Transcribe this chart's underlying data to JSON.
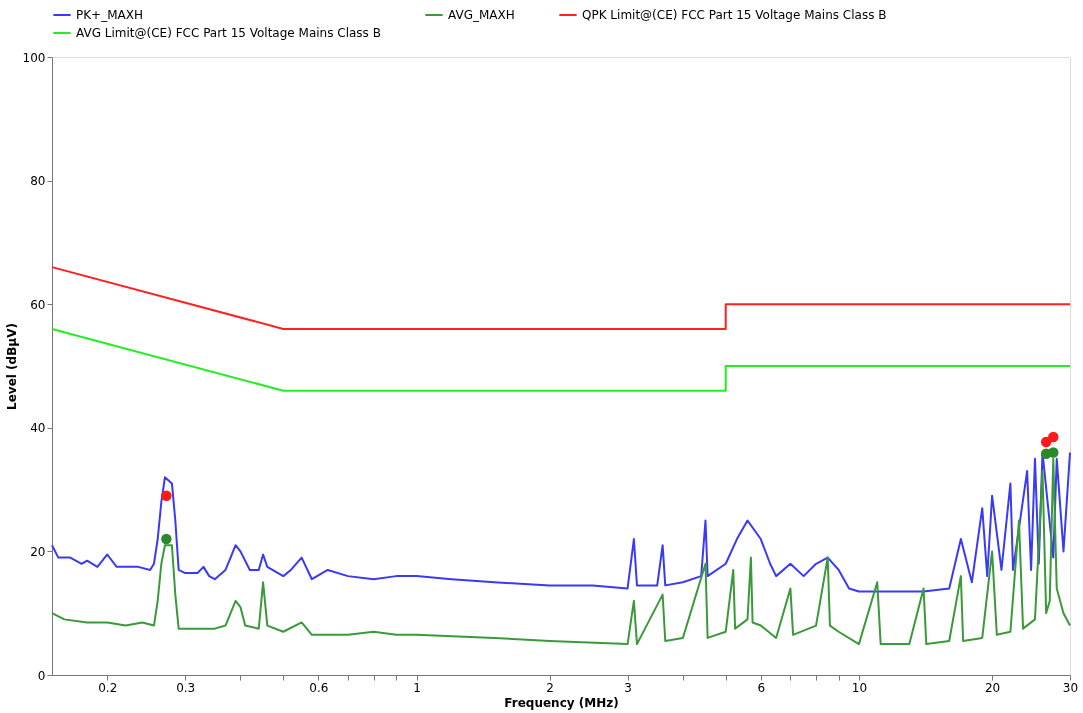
{
  "chart_data": {
    "type": "line",
    "xlabel": "Frequency (MHz)",
    "ylabel": "Level (dBµV)",
    "log": "x",
    "xlim": [
      0.15,
      30
    ],
    "ylim": [
      0,
      100
    ],
    "xticks": [
      0.2,
      0.3,
      {
        "value": 0.4,
        "label": null
      },
      {
        "value": 0.5,
        "label": null
      },
      0.6,
      {
        "value": 0.7,
        "label": null
      },
      {
        "value": 0.8,
        "label": null
      },
      {
        "value": 0.9,
        "label": null
      },
      1,
      2,
      3,
      {
        "value": 4,
        "label": null
      },
      {
        "value": 5,
        "label": null
      },
      6,
      {
        "value": 7,
        "label": null
      },
      {
        "value": 8,
        "label": null
      },
      {
        "value": 9,
        "label": null
      },
      10,
      20,
      30
    ],
    "yticks": [
      0,
      20,
      40,
      60,
      80,
      100
    ],
    "grid": false,
    "legend": "top",
    "series": [
      {
        "name": "PK+_MAXH",
        "color": "#3a3af5",
        "x": [
          0.15,
          0.155,
          0.165,
          0.175,
          0.18,
          0.19,
          0.2,
          0.21,
          0.22,
          0.235,
          0.25,
          0.255,
          0.26,
          0.265,
          0.27,
          0.28,
          0.285,
          0.29,
          0.3,
          0.32,
          0.33,
          0.34,
          0.35,
          0.37,
          0.38,
          0.39,
          0.4,
          0.42,
          0.44,
          0.45,
          0.46,
          0.5,
          0.52,
          0.55,
          0.58,
          0.63,
          0.7,
          0.8,
          0.9,
          1,
          1.2,
          1.5,
          2,
          2.5,
          3,
          3.1,
          3.15,
          3.5,
          3.6,
          3.65,
          4,
          4.4,
          4.5,
          4.55,
          5,
          5.3,
          5.6,
          6,
          6.3,
          6.5,
          7,
          7.5,
          8,
          8.5,
          9,
          9.5,
          10,
          12,
          14,
          16,
          17,
          18,
          19,
          19.5,
          20,
          21,
          22,
          22.3,
          24,
          24.5,
          25,
          25.5,
          26,
          27.5,
          28,
          29,
          30
        ],
        "values": [
          21,
          19,
          19,
          18,
          18.5,
          17.5,
          19.5,
          17.5,
          17.5,
          17.5,
          17,
          18,
          22,
          28,
          32,
          31,
          25,
          17,
          16.5,
          16.5,
          17.5,
          16,
          15.5,
          17,
          19,
          21,
          20,
          17,
          17,
          19.5,
          17.5,
          16,
          17,
          19,
          15.5,
          17,
          16,
          15.5,
          16,
          16,
          15.5,
          15,
          14.5,
          14.5,
          14,
          22,
          14.5,
          14.5,
          21,
          14.5,
          15,
          16,
          25,
          16,
          18,
          22,
          25,
          22,
          18,
          16,
          18,
          16,
          18,
          19,
          17,
          14,
          13.5,
          13.5,
          13.5,
          14,
          22,
          15,
          27,
          16,
          29,
          17,
          31,
          17,
          33,
          17,
          35,
          18,
          36,
          19,
          35,
          20,
          36
        ]
      },
      {
        "name": "AVG_MAXH",
        "color": "#3a9a3a",
        "x": [
          0.15,
          0.16,
          0.18,
          0.2,
          0.22,
          0.24,
          0.255,
          0.26,
          0.265,
          0.27,
          0.28,
          0.285,
          0.29,
          0.32,
          0.35,
          0.37,
          0.38,
          0.39,
          0.4,
          0.41,
          0.44,
          0.45,
          0.46,
          0.5,
          0.55,
          0.58,
          0.7,
          0.8,
          0.9,
          1,
          1.5,
          2,
          3,
          3.1,
          3.15,
          3.6,
          3.65,
          4,
          4.5,
          4.55,
          5,
          5.2,
          5.25,
          5.6,
          5.7,
          5.75,
          6,
          6.5,
          7,
          7.1,
          8,
          8.5,
          8.6,
          9,
          10,
          11,
          11.2,
          13,
          14,
          14.2,
          16,
          17,
          17.2,
          19,
          20,
          20.5,
          22,
          23,
          23.5,
          25,
          26,
          26.5,
          27,
          27.5,
          28,
          29,
          30
        ],
        "values": [
          10,
          9,
          8.5,
          8.5,
          8,
          8.5,
          8,
          12,
          18,
          21,
          21,
          13,
          7.5,
          7.5,
          7.5,
          8,
          10,
          12,
          11,
          8,
          7.5,
          15,
          8,
          7,
          8.5,
          6.5,
          6.5,
          7,
          6.5,
          6.5,
          6,
          5.5,
          5,
          12,
          5,
          13,
          5.5,
          6,
          18,
          6,
          7,
          17,
          7.5,
          9,
          19,
          8.5,
          8,
          6,
          14,
          6.5,
          8,
          19,
          8,
          7,
          5,
          15,
          5,
          5,
          14,
          5,
          5.5,
          16,
          5.5,
          6,
          20,
          6.5,
          7,
          25,
          7.5,
          9,
          33,
          10,
          12,
          35,
          14,
          10,
          8
        ]
      },
      {
        "name": "QPK Limit@(CE) FCC Part 15 Voltage Mains Class B",
        "color": "#ff2020",
        "x": [
          0.15,
          0.5,
          5,
          5,
          30
        ],
        "values": [
          66,
          56,
          56,
          60,
          60
        ]
      },
      {
        "name": "AVG Limit@(CE) FCC Part 15 Voltage Mains Class B",
        "color": "#22ee22",
        "x": [
          0.15,
          0.5,
          5,
          5,
          30
        ],
        "values": [
          56,
          46,
          46,
          50,
          50
        ]
      },
      {
        "type": "scatter",
        "marker": "circle",
        "color": "#ff1a1a",
        "x": [
          0.272,
          26.5,
          27.5
        ],
        "values": [
          29,
          37.7,
          38.5
        ]
      },
      {
        "type": "scatter",
        "marker": "circle",
        "color": "#2a8a2a",
        "x": [
          0.272,
          26.5,
          27.5
        ],
        "values": [
          22,
          35.8,
          36
        ]
      }
    ]
  }
}
